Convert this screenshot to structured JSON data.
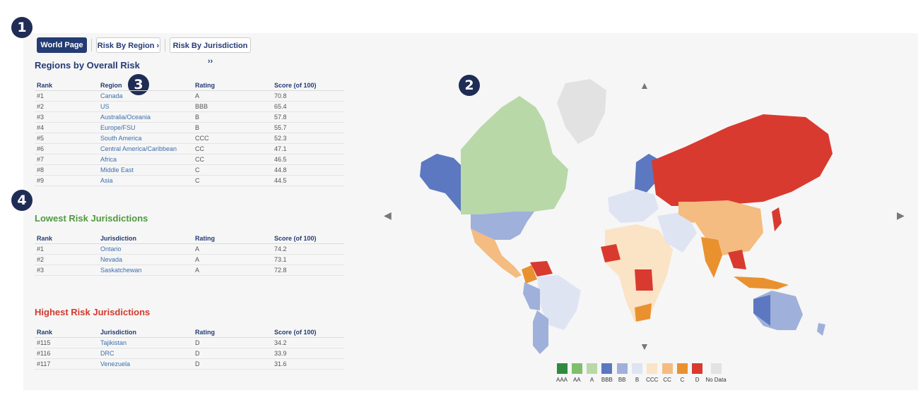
{
  "badges": [
    "1",
    "2",
    "3",
    "4"
  ],
  "nav": {
    "world": "World Page",
    "region": "Risk By Region ›",
    "jurisdiction": "Risk By Jurisdiction ››"
  },
  "regions": {
    "title": "Regions by Overall Risk",
    "headers": [
      "Rank",
      "Region",
      "Rating",
      "Score (of 100)"
    ],
    "rows": [
      [
        "#1",
        "Canada",
        "A",
        "70.8"
      ],
      [
        "#2",
        "US",
        "BBB",
        "65.4"
      ],
      [
        "#3",
        "Australia/Oceania",
        "B",
        "57.8"
      ],
      [
        "#4",
        "Europe/FSU",
        "B",
        "55.7"
      ],
      [
        "#5",
        "South America",
        "CCC",
        "52.3"
      ],
      [
        "#6",
        "Central America/Caribbean",
        "CC",
        "47.1"
      ],
      [
        "#7",
        "Africa",
        "CC",
        "46.5"
      ],
      [
        "#8",
        "Middle East",
        "C",
        "44.8"
      ],
      [
        "#9",
        "Asia",
        "C",
        "44.5"
      ]
    ]
  },
  "lowest": {
    "title": "Lowest Risk Jurisdictions",
    "title_color": "#4f9a3e",
    "headers": [
      "Rank",
      "Jurisdiction",
      "Rating",
      "Score (of 100)"
    ],
    "rows": [
      [
        "#1",
        "Ontario",
        "A",
        "74.2"
      ],
      [
        "#2",
        "Nevada",
        "A",
        "73.1"
      ],
      [
        "#3",
        "Saskatchewan",
        "A",
        "72.8"
      ]
    ]
  },
  "highest": {
    "title": "Highest Risk Jurisdictions",
    "title_color": "#d2392e",
    "headers": [
      "Rank",
      "Jurisdiction",
      "Rating",
      "Score (of 100)"
    ],
    "rows": [
      [
        "#115",
        "Tajikistan",
        "D",
        "34.2"
      ],
      [
        "#116",
        "DRC",
        "D",
        "33.9"
      ],
      [
        "#117",
        "Venezuela",
        "D",
        "31.6"
      ]
    ]
  },
  "map": {
    "arrows": {
      "up": "▲",
      "down": "▼",
      "left": "◀",
      "right": "▶"
    },
    "legend": [
      {
        "label": "AAA",
        "color": "#2e8b3e"
      },
      {
        "label": "AA",
        "color": "#7fbf6a"
      },
      {
        "label": "A",
        "color": "#b8d8a8"
      },
      {
        "label": "BBB",
        "color": "#5b78c0"
      },
      {
        "label": "BB",
        "color": "#9fb0da"
      },
      {
        "label": "B",
        "color": "#dfe4f3"
      },
      {
        "label": "CCC",
        "color": "#fbe3c6"
      },
      {
        "label": "CC",
        "color": "#f4bc80"
      },
      {
        "label": "C",
        "color": "#e9912f"
      },
      {
        "label": "D",
        "color": "#d93a2f"
      },
      {
        "label": "No Data",
        "color": "#e2e2e2"
      }
    ]
  }
}
